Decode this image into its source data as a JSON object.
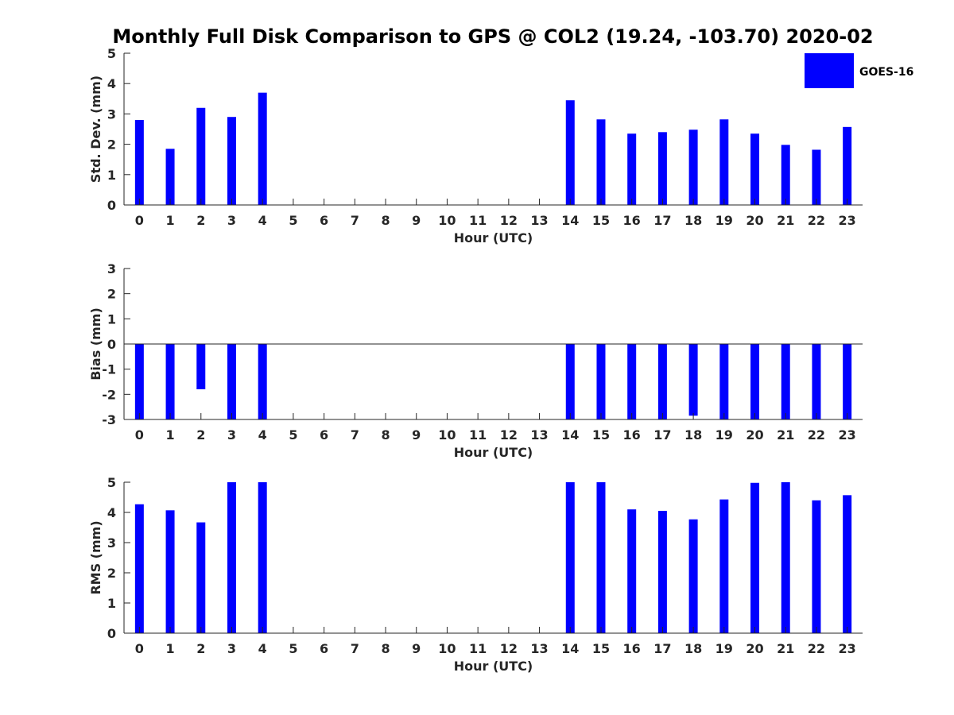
{
  "chart_data": {
    "title": "Monthly Full Disk Comparison to GPS @ COL2 (19.24, -103.70) 2020-02",
    "type": "bar",
    "legend": {
      "label": "GOES-16",
      "color": "#0000ff",
      "placement": "top-right"
    },
    "x": [
      0,
      1,
      2,
      3,
      4,
      5,
      6,
      7,
      8,
      9,
      10,
      11,
      12,
      13,
      14,
      15,
      16,
      17,
      18,
      19,
      20,
      21,
      22,
      23
    ],
    "xticklabels": [
      "0",
      "1",
      "2",
      "3",
      "4",
      "5",
      "6",
      "7",
      "8",
      "9",
      "10",
      "11",
      "12",
      "13",
      "14",
      "15",
      "16",
      "17",
      "18",
      "19",
      "20",
      "21",
      "22",
      "23"
    ],
    "panels": [
      {
        "name": "stddev",
        "type": "bar",
        "xlabel": "Hour (UTC)",
        "ylabel": "Std. Dev. (mm)",
        "ylim": [
          0,
          5
        ],
        "yticks": [
          "0",
          "1",
          "2",
          "3",
          "4",
          "5"
        ],
        "zero_line": false,
        "values": [
          2.8,
          1.85,
          3.2,
          2.9,
          3.7,
          null,
          null,
          null,
          null,
          null,
          null,
          null,
          null,
          null,
          3.45,
          2.82,
          2.35,
          2.4,
          2.48,
          2.82,
          2.35,
          1.98,
          1.82,
          2.57
        ]
      },
      {
        "name": "bias",
        "type": "bar",
        "xlabel": "Hour (UTC)",
        "ylabel": "Bias (mm)",
        "ylim": [
          -3,
          3
        ],
        "yticks": [
          "-3",
          "-2",
          "-1",
          "0",
          "1",
          "2",
          "3"
        ],
        "zero_line": true,
        "values": [
          -3,
          -3,
          -1.8,
          -3,
          -3,
          null,
          null,
          null,
          null,
          null,
          null,
          null,
          null,
          null,
          -3,
          -3,
          -3,
          -3,
          -2.85,
          -3,
          -3,
          -3,
          -3,
          -3
        ]
      },
      {
        "name": "rms",
        "type": "bar",
        "xlabel": "Hour (UTC)",
        "ylabel": "RMS (mm)",
        "ylim": [
          0,
          5
        ],
        "yticks": [
          "0",
          "1",
          "2",
          "3",
          "4",
          "5"
        ],
        "zero_line": false,
        "values": [
          4.27,
          4.07,
          3.67,
          5,
          5,
          null,
          null,
          null,
          null,
          null,
          null,
          null,
          null,
          null,
          5,
          5,
          4.1,
          4.05,
          3.77,
          4.43,
          4.98,
          5,
          4.4,
          4.57
        ]
      }
    ]
  }
}
